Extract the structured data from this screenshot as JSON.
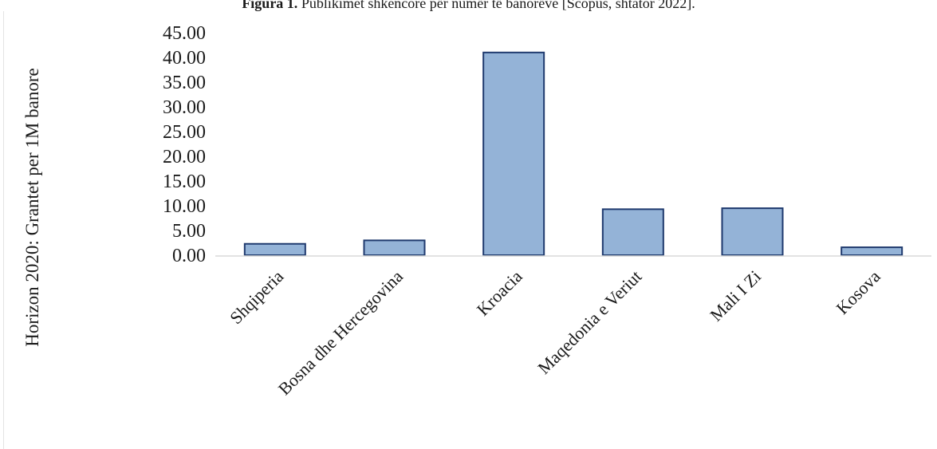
{
  "caption": {
    "prefix": "Figura 1.",
    "text": " Publikimet shkencore për numër të banorëve [Scopus, shtator 2022]."
  },
  "chart_data": {
    "type": "bar",
    "title": "",
    "xlabel": "",
    "ylabel": "Horizon 2020: Grantet per 1M banore",
    "categories": [
      "Shqiperia",
      "Bosna dhe Hercegovina",
      "Kroacia",
      "Maqedonia e Veriut",
      "Mali I Zi",
      "Kosova"
    ],
    "values": [
      2.3,
      3.0,
      41.0,
      9.3,
      9.5,
      1.6
    ],
    "ylim": [
      0,
      45
    ],
    "yticks": [
      "0.00",
      "5.00",
      "10.00",
      "15.00",
      "20.00",
      "25.00",
      "30.00",
      "35.00",
      "40.00",
      "45.00"
    ],
    "grid": false,
    "legend": "none",
    "colors": {
      "bar_fill": "#94b3d7",
      "bar_stroke": "#1f3a6e",
      "axis": "#d9d9d9",
      "text": "#1a1a1a"
    }
  }
}
